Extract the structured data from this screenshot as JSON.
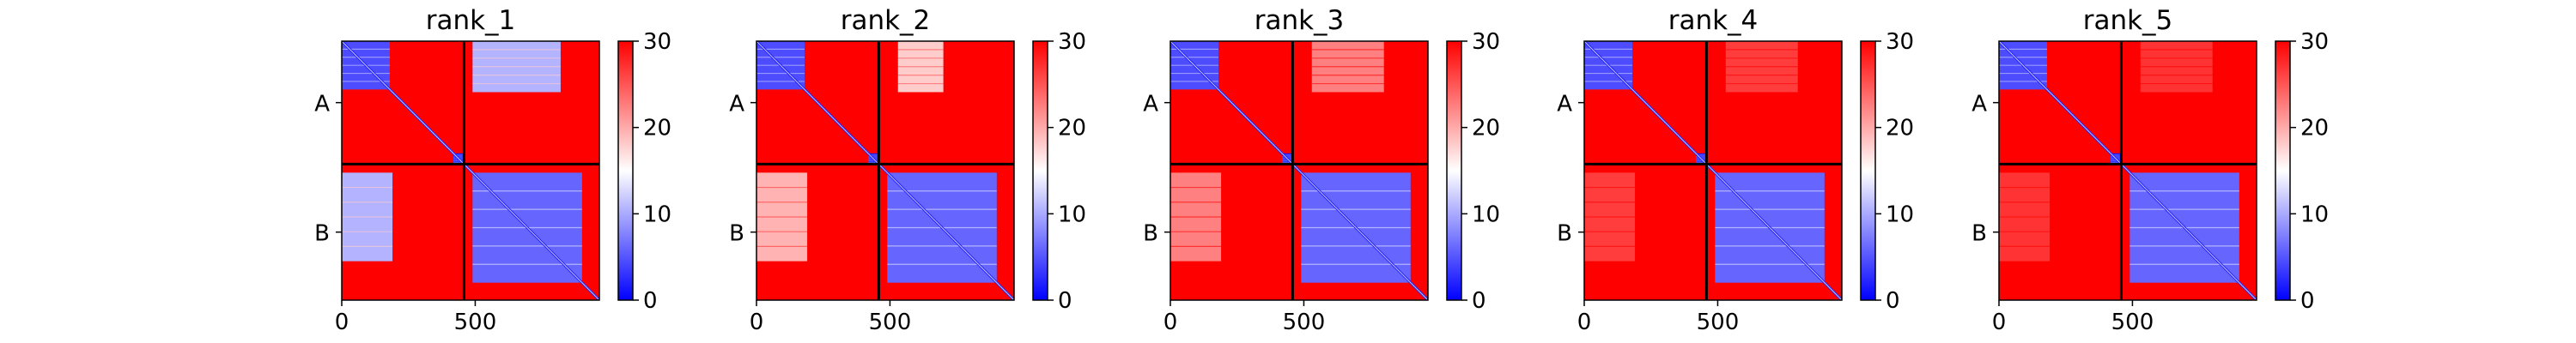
{
  "chart_data": [
    {
      "type": "heatmap",
      "title": "rank_1",
      "xlim": [
        0,
        965
      ],
      "ylim": [
        965,
        0
      ],
      "xticks": [
        0,
        500
      ],
      "yticklabels": [
        "A",
        "B"
      ],
      "chain_break": 458,
      "colorbar": {
        "min": 0,
        "max": 30,
        "ticks": [
          0,
          10,
          20,
          30
        ]
      },
      "blue_blocks": [
        {
          "rows": [
            0,
            180
          ],
          "cols": [
            0,
            180
          ],
          "level": 0.15
        },
        {
          "rows": [
            418,
            458
          ],
          "cols": [
            418,
            458
          ],
          "level": 0.05
        },
        {
          "rows": [
            490,
            900
          ],
          "cols": [
            490,
            900
          ],
          "level": 0.2
        },
        {
          "rows": [
            0,
            190
          ],
          "cols": [
            490,
            820
          ],
          "level": 0.35
        },
        {
          "rows": [
            490,
            820
          ],
          "cols": [
            0,
            190
          ],
          "level": 0.35
        }
      ]
    },
    {
      "type": "heatmap",
      "title": "rank_2",
      "xlim": [
        0,
        965
      ],
      "ylim": [
        965,
        0
      ],
      "xticks": [
        0,
        500
      ],
      "yticklabels": [
        "A",
        "B"
      ],
      "chain_break": 458,
      "colorbar": {
        "min": 0,
        "max": 30,
        "ticks": [
          0,
          10,
          20,
          30
        ]
      },
      "blue_blocks": [
        {
          "rows": [
            0,
            180
          ],
          "cols": [
            0,
            180
          ],
          "level": 0.15
        },
        {
          "rows": [
            418,
            458
          ],
          "cols": [
            418,
            458
          ],
          "level": 0.05
        },
        {
          "rows": [
            490,
            900
          ],
          "cols": [
            490,
            900
          ],
          "level": 0.2
        },
        {
          "rows": [
            0,
            190
          ],
          "cols": [
            530,
            700
          ],
          "level": 0.6
        },
        {
          "rows": [
            490,
            820
          ],
          "cols": [
            0,
            190
          ],
          "level": 0.65
        }
      ]
    },
    {
      "type": "heatmap",
      "title": "rank_3",
      "xlim": [
        0,
        965
      ],
      "ylim": [
        965,
        0
      ],
      "xticks": [
        0,
        500
      ],
      "yticklabels": [
        "A",
        "B"
      ],
      "chain_break": 458,
      "colorbar": {
        "min": 0,
        "max": 30,
        "ticks": [
          0,
          10,
          20,
          30
        ]
      },
      "blue_blocks": [
        {
          "rows": [
            0,
            180
          ],
          "cols": [
            0,
            180
          ],
          "level": 0.15
        },
        {
          "rows": [
            418,
            458
          ],
          "cols": [
            418,
            458
          ],
          "level": 0.05
        },
        {
          "rows": [
            490,
            900
          ],
          "cols": [
            490,
            900
          ],
          "level": 0.2
        },
        {
          "rows": [
            0,
            190
          ],
          "cols": [
            530,
            800
          ],
          "level": 0.75
        },
        {
          "rows": [
            490,
            820
          ],
          "cols": [
            0,
            190
          ],
          "level": 0.75
        }
      ]
    },
    {
      "type": "heatmap",
      "title": "rank_4",
      "xlim": [
        0,
        965
      ],
      "ylim": [
        965,
        0
      ],
      "xticks": [
        0,
        500
      ],
      "yticklabels": [
        "A",
        "B"
      ],
      "chain_break": 458,
      "colorbar": {
        "min": 0,
        "max": 30,
        "ticks": [
          0,
          10,
          20,
          30
        ]
      },
      "blue_blocks": [
        {
          "rows": [
            0,
            180
          ],
          "cols": [
            0,
            180
          ],
          "level": 0.15
        },
        {
          "rows": [
            418,
            458
          ],
          "cols": [
            418,
            458
          ],
          "level": 0.05
        },
        {
          "rows": [
            490,
            900
          ],
          "cols": [
            490,
            900
          ],
          "level": 0.2
        },
        {
          "rows": [
            0,
            190
          ],
          "cols": [
            530,
            800
          ],
          "level": 0.88
        },
        {
          "rows": [
            490,
            820
          ],
          "cols": [
            0,
            190
          ],
          "level": 0.88
        }
      ]
    },
    {
      "type": "heatmap",
      "title": "rank_5",
      "xlim": [
        0,
        965
      ],
      "ylim": [
        965,
        0
      ],
      "xticks": [
        0,
        500
      ],
      "yticklabels": [
        "A",
        "B"
      ],
      "chain_break": 458,
      "colorbar": {
        "min": 0,
        "max": 30,
        "ticks": [
          0,
          10,
          20,
          30
        ]
      },
      "blue_blocks": [
        {
          "rows": [
            0,
            180
          ],
          "cols": [
            0,
            180
          ],
          "level": 0.15
        },
        {
          "rows": [
            418,
            458
          ],
          "cols": [
            418,
            458
          ],
          "level": 0.05
        },
        {
          "rows": [
            490,
            900
          ],
          "cols": [
            490,
            900
          ],
          "level": 0.2
        },
        {
          "rows": [
            0,
            190
          ],
          "cols": [
            530,
            800
          ],
          "level": 0.9
        },
        {
          "rows": [
            490,
            820
          ],
          "cols": [
            0,
            190
          ],
          "level": 0.9
        }
      ]
    }
  ],
  "colors": {
    "low": "#0000ff",
    "mid": "#ffffff",
    "high": "#ff0000",
    "divider": "#000000"
  }
}
